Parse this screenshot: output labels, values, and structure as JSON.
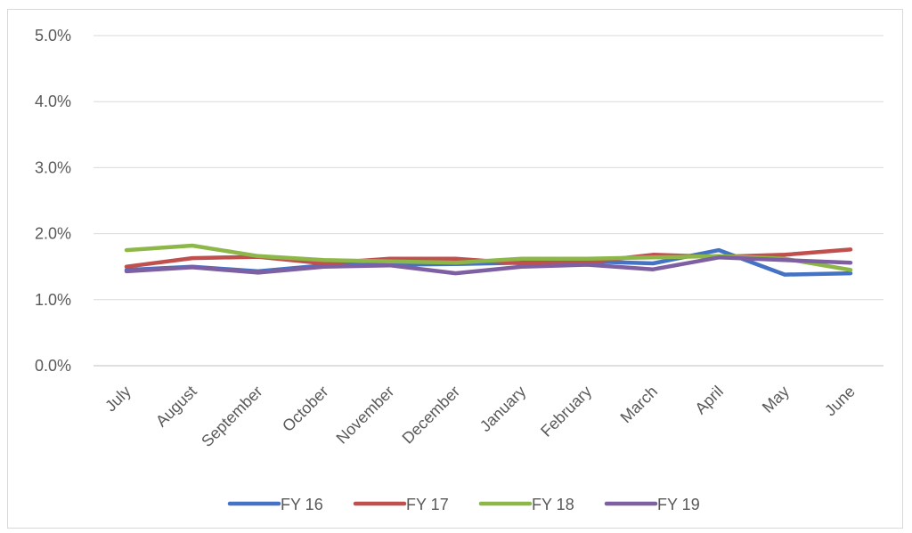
{
  "chart_data": {
    "type": "line",
    "title": "",
    "xlabel": "",
    "ylabel": "",
    "categories": [
      "July",
      "August",
      "September",
      "October",
      "November",
      "December",
      "January",
      "February",
      "March",
      "April",
      "May",
      "June"
    ],
    "ylim": [
      0,
      5
    ],
    "yticks": [
      "0.0%",
      "1.0%",
      "2.0%",
      "3.0%",
      "4.0%",
      "5.0%"
    ],
    "grid": true,
    "legend_position": "bottom",
    "series": [
      {
        "name": "FY 16",
        "color": "#4472C4",
        "values": [
          1.45,
          1.5,
          1.43,
          1.52,
          1.53,
          1.54,
          1.56,
          1.58,
          1.55,
          1.75,
          1.38,
          1.4
        ]
      },
      {
        "name": "FY 17",
        "color": "#C0504D",
        "values": [
          1.5,
          1.63,
          1.65,
          1.55,
          1.62,
          1.62,
          1.55,
          1.57,
          1.68,
          1.65,
          1.68,
          1.76
        ]
      },
      {
        "name": "FY 18",
        "color": "#8DB849",
        "values": [
          1.75,
          1.82,
          1.66,
          1.6,
          1.58,
          1.56,
          1.62,
          1.62,
          1.64,
          1.66,
          1.62,
          1.45
        ]
      },
      {
        "name": "FY 19",
        "color": "#7E5FA2",
        "values": [
          1.43,
          1.49,
          1.41,
          1.5,
          1.52,
          1.4,
          1.5,
          1.53,
          1.46,
          1.64,
          1.6,
          1.56
        ]
      }
    ]
  }
}
